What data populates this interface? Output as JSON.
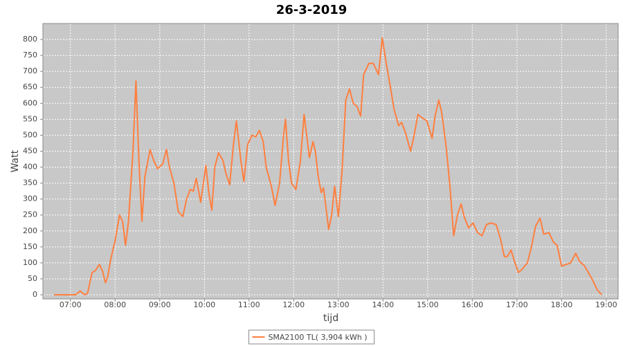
{
  "chart_data": {
    "type": "line",
    "title": "26-3-2019",
    "x_label": "tijd",
    "y_label": "Watt",
    "xlim": [
      "06:23",
      "19:16"
    ],
    "xticks": [
      "07:00",
      "08:00",
      "09:00",
      "10:00",
      "11:00",
      "12:00",
      "13:00",
      "14:00",
      "15:00",
      "16:00",
      "17:00",
      "18:00",
      "19:00"
    ],
    "ylim": [
      -13,
      850
    ],
    "yticks": [
      0,
      50,
      100,
      150,
      200,
      250,
      300,
      350,
      400,
      450,
      500,
      550,
      600,
      650,
      700,
      750,
      800
    ],
    "grid": true,
    "legend": "bottom",
    "x": [
      "06:38",
      "07:07",
      "07:13",
      "07:19",
      "07:23",
      "07:29",
      "07:33",
      "07:39",
      "07:43",
      "07:47",
      "07:50",
      "07:54",
      "08:00",
      "08:06",
      "08:10",
      "08:14",
      "08:18",
      "08:24",
      "08:28",
      "08:32",
      "08:36",
      "08:40",
      "08:47",
      "08:52",
      "08:57",
      "09:04",
      "09:09",
      "09:13",
      "09:19",
      "09:25",
      "09:31",
      "09:36",
      "09:41",
      "09:45",
      "09:49",
      "09:55",
      "10:02",
      "10:06",
      "10:10",
      "10:14",
      "10:19",
      "10:25",
      "10:29",
      "10:34",
      "10:39",
      "10:43",
      "10:49",
      "10:53",
      "10:58",
      "11:04",
      "11:09",
      "11:14",
      "11:19",
      "11:23",
      "11:30",
      "11:35",
      "11:41",
      "11:46",
      "11:49",
      "11:53",
      "11:57",
      "12:03",
      "12:09",
      "12:14",
      "12:18",
      "12:21",
      "12:26",
      "12:29",
      "12:33",
      "12:37",
      "12:40",
      "12:42",
      "12:47",
      "12:51",
      "12:55",
      "13:00",
      "13:05",
      "13:10",
      "13:15",
      "13:20",
      "13:25",
      "13:30",
      "13:34",
      "13:41",
      "13:47",
      "13:54",
      "13:59",
      "14:04",
      "14:10",
      "14:15",
      "14:21",
      "14:25",
      "14:30",
      "14:37",
      "14:41",
      "14:47",
      "14:52",
      "14:59",
      "15:06",
      "15:10",
      "15:15",
      "15:19",
      "15:25",
      "15:30",
      "15:35",
      "15:40",
      "15:45",
      "15:49",
      "15:55",
      "16:01",
      "16:07",
      "16:13",
      "16:19",
      "16:25",
      "16:32",
      "16:38",
      "16:43",
      "16:47",
      "16:52",
      "16:56",
      "17:02",
      "17:07",
      "17:14",
      "17:19",
      "17:25",
      "17:31",
      "17:36",
      "17:43",
      "17:49",
      "17:54",
      "18:00",
      "18:06",
      "18:12",
      "18:19",
      "18:24",
      "18:31",
      "18:37",
      "18:42",
      "18:48",
      "18:54"
    ],
    "series": [
      {
        "name": "SMA2100 TL( 3,904 kWh )",
        "color": "#ff7f3f",
        "values": [
          0,
          0,
          12,
          0,
          5,
          70,
          75,
          95,
          75,
          38,
          55,
          110,
          170,
          250,
          230,
          155,
          230,
          450,
          670,
          420,
          230,
          370,
          455,
          420,
          395,
          410,
          455,
          400,
          350,
          260,
          245,
          300,
          330,
          325,
          365,
          290,
          405,
          320,
          265,
          400,
          445,
          420,
          380,
          345,
          470,
          545,
          420,
          355,
          470,
          500,
          495,
          515,
          480,
          400,
          340,
          280,
          350,
          490,
          550,
          420,
          350,
          330,
          420,
          565,
          490,
          430,
          480,
          450,
          370,
          320,
          335,
          300,
          205,
          250,
          340,
          245,
          390,
          610,
          645,
          600,
          590,
          560,
          690,
          725,
          725,
          690,
          805,
          730,
          650,
          580,
          530,
          540,
          510,
          450,
          490,
          565,
          555,
          545,
          490,
          560,
          610,
          570,
          460,
          340,
          185,
          250,
          285,
          245,
          210,
          225,
          195,
          185,
          220,
          225,
          220,
          175,
          120,
          120,
          140,
          110,
          70,
          80,
          100,
          145,
          215,
          240,
          190,
          195,
          165,
          155,
          90,
          95,
          100,
          130,
          105,
          90,
          65,
          45,
          15,
          0
        ]
      }
    ]
  }
}
